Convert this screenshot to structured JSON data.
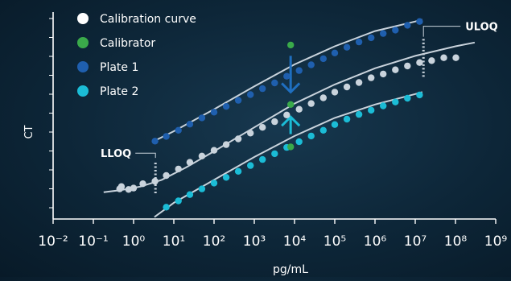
{
  "chart_data": {
    "type": "scatter",
    "title": "",
    "xlabel": "pg/mL",
    "ylabel": "CT",
    "x_scale": "log",
    "xlim": [
      0.01,
      1000000000
    ],
    "ylim": [
      0,
      10
    ],
    "x_ticks": [
      "10⁻²",
      "10⁻¹",
      "10⁰",
      "10¹",
      "10²",
      "10³",
      "10⁴",
      "10⁵",
      "10⁶",
      "10⁷",
      "10⁸",
      "10⁹"
    ],
    "legend": [
      {
        "label": "Calibration curve",
        "color": "#ffffff"
      },
      {
        "label": "Calibrator",
        "color": "#3aaa4a"
      },
      {
        "label": "Plate 1",
        "color": "#1f5fae"
      },
      {
        "label": "Plate 2",
        "color": "#1bbcd6"
      }
    ],
    "legend_position": "top-left",
    "annotations": {
      "lloq": "LLOQ",
      "uloq": "ULOQ",
      "lloq_x": 3.5,
      "uloq_x": 16000000
    },
    "series": [
      {
        "name": "Calibration curve",
        "color": "#c9d3dc",
        "x": [
          0.45,
          0.5,
          0.75,
          1.0,
          1.7,
          3.4,
          6.5,
          13,
          25,
          50,
          100,
          200,
          400,
          800,
          1600,
          3200,
          6400,
          13000,
          26000,
          52000,
          100000,
          200000,
          400000,
          800000,
          1600000,
          3200000,
          6400000,
          12800000,
          25600000,
          51200000,
          102400000
        ],
        "y": [
          1.58,
          1.7,
          1.55,
          1.62,
          1.85,
          1.98,
          2.28,
          2.62,
          2.97,
          3.3,
          3.6,
          3.9,
          4.2,
          4.5,
          4.8,
          5.1,
          5.45,
          5.75,
          6.05,
          6.35,
          6.65,
          6.92,
          7.15,
          7.4,
          7.6,
          7.82,
          8.02,
          8.2,
          8.3,
          8.45,
          8.45
        ]
      },
      {
        "name": "Plate 1",
        "color": "#1f5fae",
        "x": [
          3.4,
          6.5,
          13,
          25,
          50,
          100,
          200,
          400,
          800,
          1600,
          3200,
          6400,
          13000,
          26000,
          52000,
          100000,
          200000,
          400000,
          800000,
          1600000,
          3200000,
          6400000,
          12800000
        ],
        "y": [
          4.08,
          4.33,
          4.65,
          4.97,
          5.3,
          5.6,
          5.9,
          6.22,
          6.52,
          6.83,
          7.13,
          7.48,
          7.78,
          8.08,
          8.4,
          8.7,
          9.0,
          9.28,
          9.5,
          9.72,
          9.9,
          10.15,
          10.35
        ]
      },
      {
        "name": "Plate 2",
        "color": "#1bbcd6",
        "x": [
          6.5,
          13,
          25,
          50,
          100,
          200,
          400,
          800,
          1600,
          3200,
          6400,
          13000,
          26000,
          52000,
          100000,
          200000,
          400000,
          800000,
          1600000,
          3200000,
          6400000,
          12800000
        ],
        "y": [
          0.62,
          0.95,
          1.28,
          1.58,
          1.88,
          2.18,
          2.5,
          2.8,
          3.12,
          3.42,
          3.75,
          4.05,
          4.35,
          4.65,
          4.95,
          5.23,
          5.48,
          5.7,
          5.93,
          6.13,
          6.33,
          6.5
        ]
      },
      {
        "name": "Calibrator",
        "color": "#3aaa4a",
        "x": [
          8000,
          8000,
          8000
        ],
        "y": [
          9.12,
          6.0,
          3.78
        ]
      }
    ],
    "fit_curves": [
      {
        "color": "#c9d3dc",
        "x": [
          0.18,
          0.5,
          1.5,
          5,
          20,
          100,
          1000,
          10000,
          100000,
          1000000,
          10000000,
          100000000,
          300000000
        ],
        "y": [
          1.4,
          1.52,
          1.7,
          2.05,
          2.7,
          3.55,
          4.8,
          6.05,
          7.05,
          7.9,
          8.55,
          9.05,
          9.25
        ]
      },
      {
        "color": "#c9d3dc",
        "x": [
          3,
          10,
          100,
          1000,
          10000,
          100000,
          1000000,
          10000000,
          15000000
        ],
        "y": [
          4.05,
          4.6,
          5.75,
          6.95,
          8.1,
          9.05,
          9.85,
          10.35,
          10.45
        ]
      },
      {
        "color": "#c9d3dc",
        "x": [
          3.3,
          10,
          100,
          1000,
          10000,
          100000,
          1000000,
          10000000,
          15000000
        ],
        "y": [
          0.1,
          0.85,
          2.05,
          3.25,
          4.35,
          5.3,
          6.0,
          6.55,
          6.65
        ]
      }
    ]
  }
}
